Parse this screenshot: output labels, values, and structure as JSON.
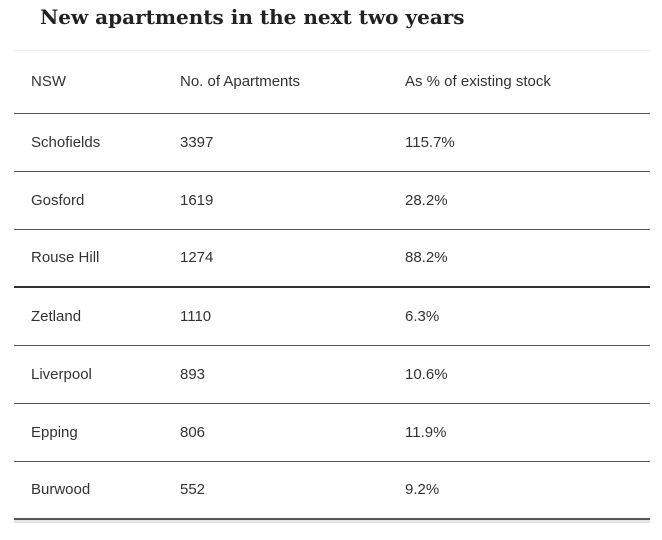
{
  "title": "New apartments in the next two years",
  "table": {
    "headers": [
      "NSW",
      "No. of Apartments",
      "As % of existing stock"
    ],
    "rows": [
      {
        "suburb": "Schofields",
        "apartments": "3397",
        "percent": "115.7%"
      },
      {
        "suburb": "Gosford",
        "apartments": "1619",
        "percent": "28.2%"
      },
      {
        "suburb": "Rouse Hill",
        "apartments": "1274",
        "percent": "88.2%"
      },
      {
        "suburb": "Zetland",
        "apartments": "1110",
        "percent": "6.3%"
      },
      {
        "suburb": "Liverpool",
        "apartments": "893",
        "percent": "10.6%"
      },
      {
        "suburb": "Epping",
        "apartments": "806",
        "percent": "11.9%"
      },
      {
        "suburb": "Burwood",
        "apartments": "552",
        "percent": "9.2%"
      }
    ]
  }
}
